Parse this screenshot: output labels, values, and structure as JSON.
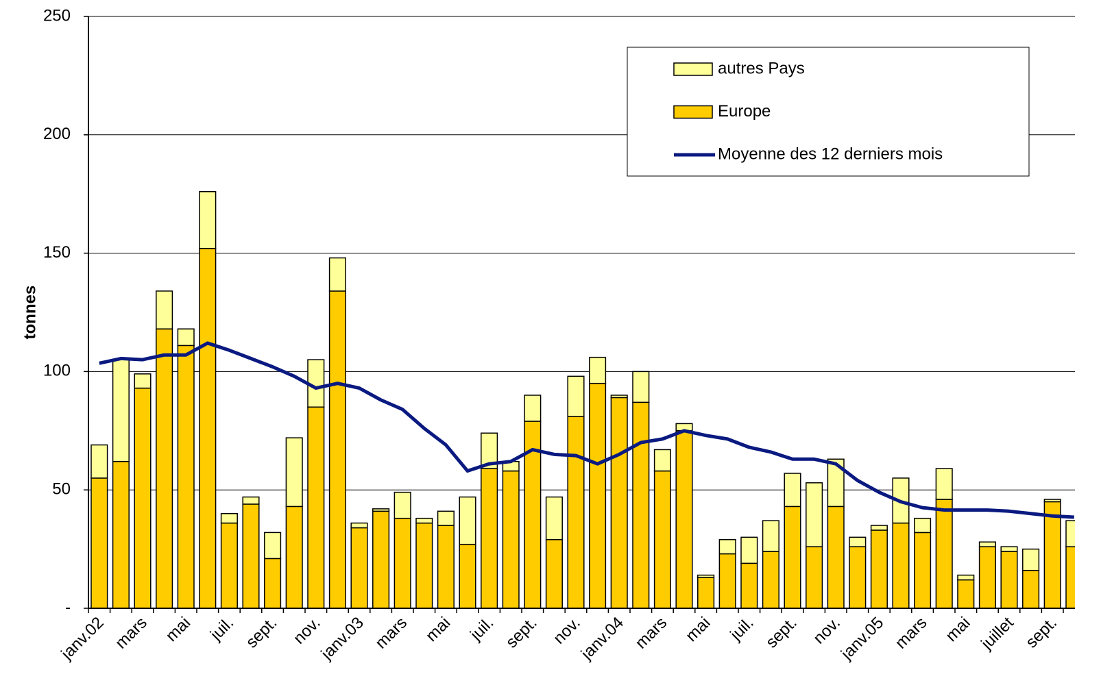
{
  "chart_data": {
    "type": "bar",
    "stacked": true,
    "y_label": "tonnes",
    "categories": [
      "janv.02",
      null,
      "mars",
      null,
      "mai",
      null,
      "juil.",
      null,
      "sept.",
      null,
      "nov.",
      null,
      "janv.03",
      null,
      "mars",
      null,
      "mai",
      null,
      "juil.",
      null,
      "sept.",
      null,
      "nov.",
      null,
      "janv.04",
      null,
      "mars",
      null,
      "mai",
      null,
      "juil.",
      null,
      "sept.",
      null,
      "nov.",
      null,
      "janv.05",
      null,
      "mars",
      null,
      "mai",
      null,
      "juillet",
      null,
      "sept.",
      null
    ],
    "series": [
      {
        "name": "Europe",
        "type": "bar",
        "color": "#ffcc00",
        "values": [
          55,
          62,
          93,
          118,
          111,
          152,
          36,
          44,
          21,
          43,
          85,
          134,
          34,
          41,
          38,
          36,
          35,
          27,
          59,
          58,
          79,
          29,
          81,
          95,
          89,
          87,
          58,
          75,
          13,
          23,
          19,
          24,
          43,
          26,
          43,
          26,
          33,
          36,
          32,
          46,
          12,
          26,
          24,
          16,
          45,
          26
        ]
      },
      {
        "name": "autres Pays",
        "type": "bar",
        "color": "#ffff99",
        "values": [
          14,
          43,
          6,
          16,
          7,
          24,
          4,
          3,
          11,
          29,
          20,
          14,
          2,
          1,
          11,
          2,
          6,
          20,
          15,
          4,
          11,
          18,
          17,
          11,
          1,
          13,
          9,
          3,
          1,
          6,
          11,
          13,
          14,
          27,
          20,
          4,
          2,
          19,
          6,
          13,
          2,
          2,
          2,
          9,
          1,
          11
        ]
      },
      {
        "name": "Moyenne des 12 derniers mois",
        "type": "line",
        "color": "#0a1a80",
        "values": [
          103.5,
          105.5,
          105,
          107,
          107,
          112,
          109,
          105.5,
          102,
          98,
          93,
          95,
          93,
          88,
          84,
          76,
          69,
          58,
          61,
          62,
          67,
          65,
          64.5,
          61,
          65,
          70,
          71.5,
          75,
          73,
          71.5,
          68,
          66,
          63,
          63,
          61,
          54,
          49,
          45,
          42.5,
          41.5,
          41.5,
          41.5,
          41,
          40,
          39,
          38.5
        ]
      }
    ],
    "legend_order": [
      1,
      0,
      2
    ],
    "ylim": [
      0,
      250
    ],
    "yticks": [
      {
        "value": 0,
        "label": "-"
      },
      50,
      100,
      150,
      200,
      250
    ],
    "grid": true
  }
}
